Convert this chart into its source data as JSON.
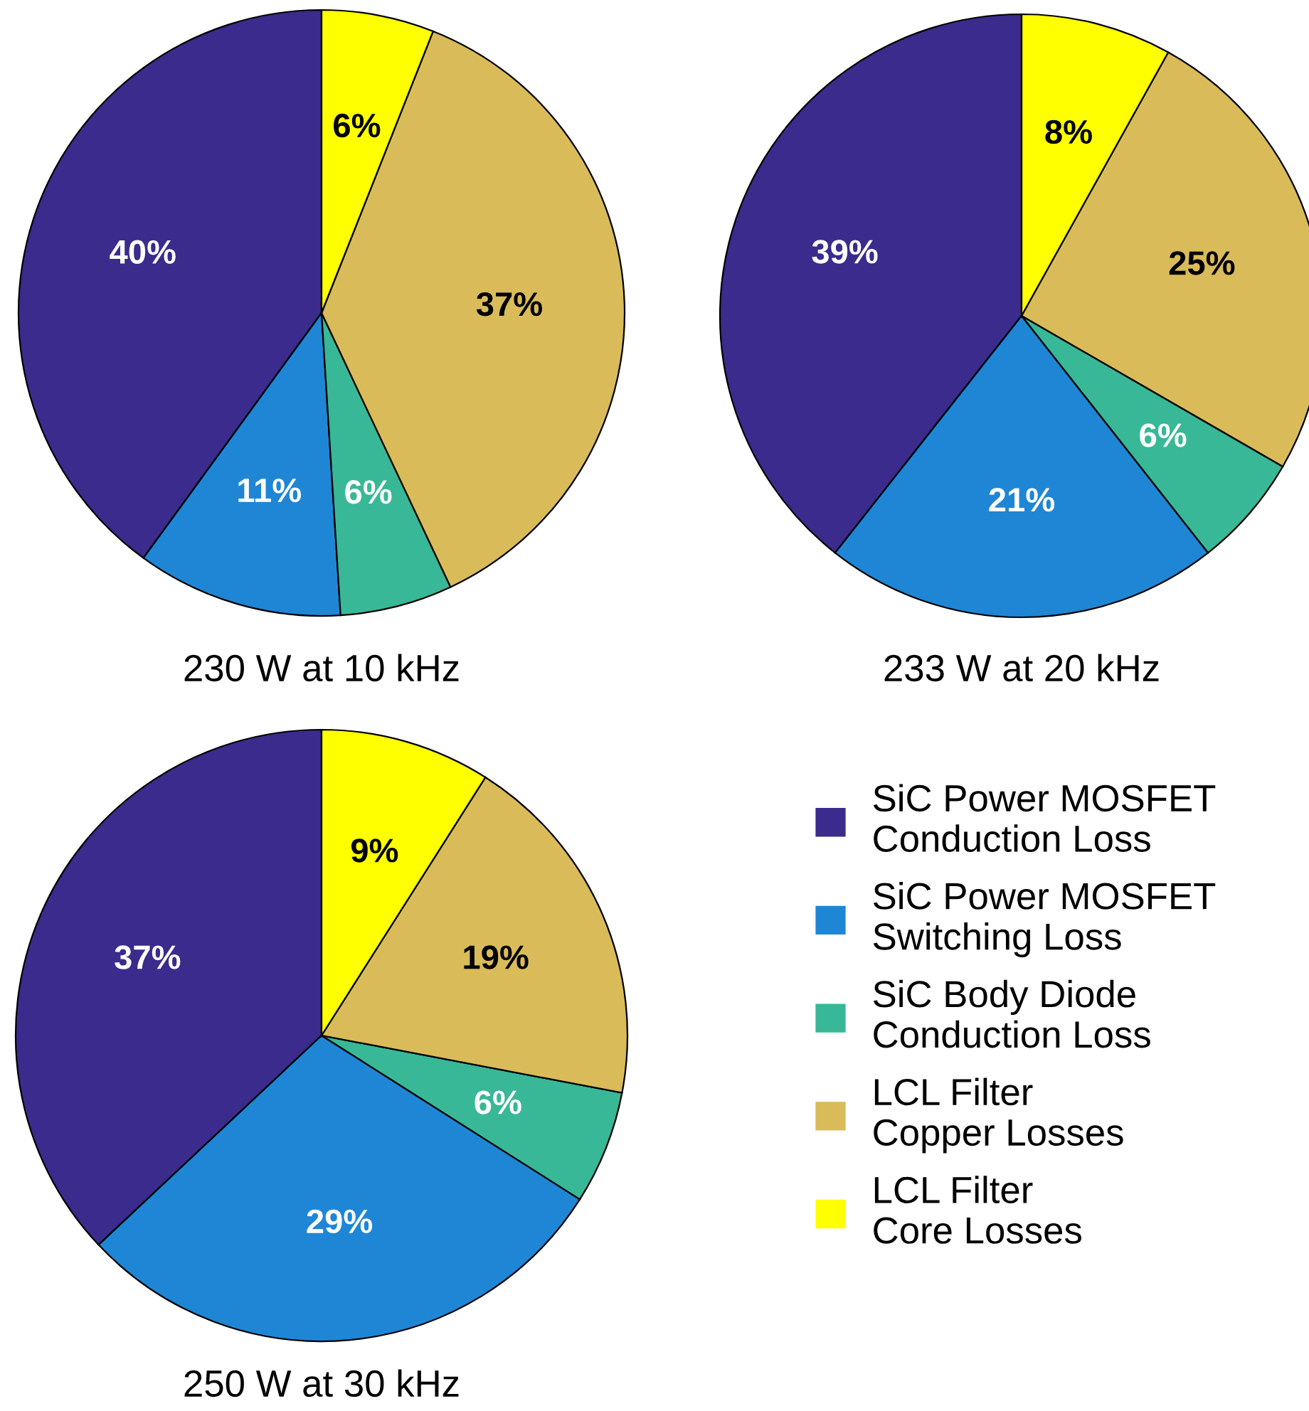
{
  "chart_data": [
    {
      "type": "pie",
      "title": "230 W at 10 kHz",
      "categories": [
        null,
        null,
        null,
        null,
        null
      ],
      "values": [
        40,
        11,
        6,
        37,
        6
      ],
      "value_labels": [
        "40%",
        "11%",
        "6%",
        "37%",
        "6%"
      ],
      "colors": [
        "#3b2b8c",
        "#1f86d6",
        "#38b896",
        "#d9bb5a",
        "#ffff00"
      ]
    },
    {
      "type": "pie",
      "title": "233 W at 20 kHz",
      "categories": [
        null,
        null,
        null,
        null,
        null
      ],
      "values": [
        39,
        21,
        6,
        25,
        8
      ],
      "value_labels": [
        "39%",
        "21%",
        "6%",
        "25%",
        "8%"
      ],
      "colors": [
        "#3b2b8c",
        "#1f86d6",
        "#38b896",
        "#d9bb5a",
        "#ffff00"
      ]
    },
    {
      "type": "pie",
      "title": "250 W at 30 kHz",
      "categories": [
        "SiC Power MOSFET\nConduction Loss",
        "SiC Power MOSFET\nSwitching Loss",
        "SiC Body Diode\nConduction Loss",
        "LCL Filter\nCopper Losses",
        "LCL Filter\nCore Losses"
      ],
      "values": [
        37,
        29,
        6,
        19,
        9
      ],
      "value_labels": [
        "37%",
        "29%",
        "6%",
        "19%",
        "9%"
      ],
      "colors": [
        "#3b2b8c",
        "#1f86d6",
        "#38b896",
        "#d9bb5a",
        "#ffff00"
      ],
      "legend": "right"
    }
  ]
}
